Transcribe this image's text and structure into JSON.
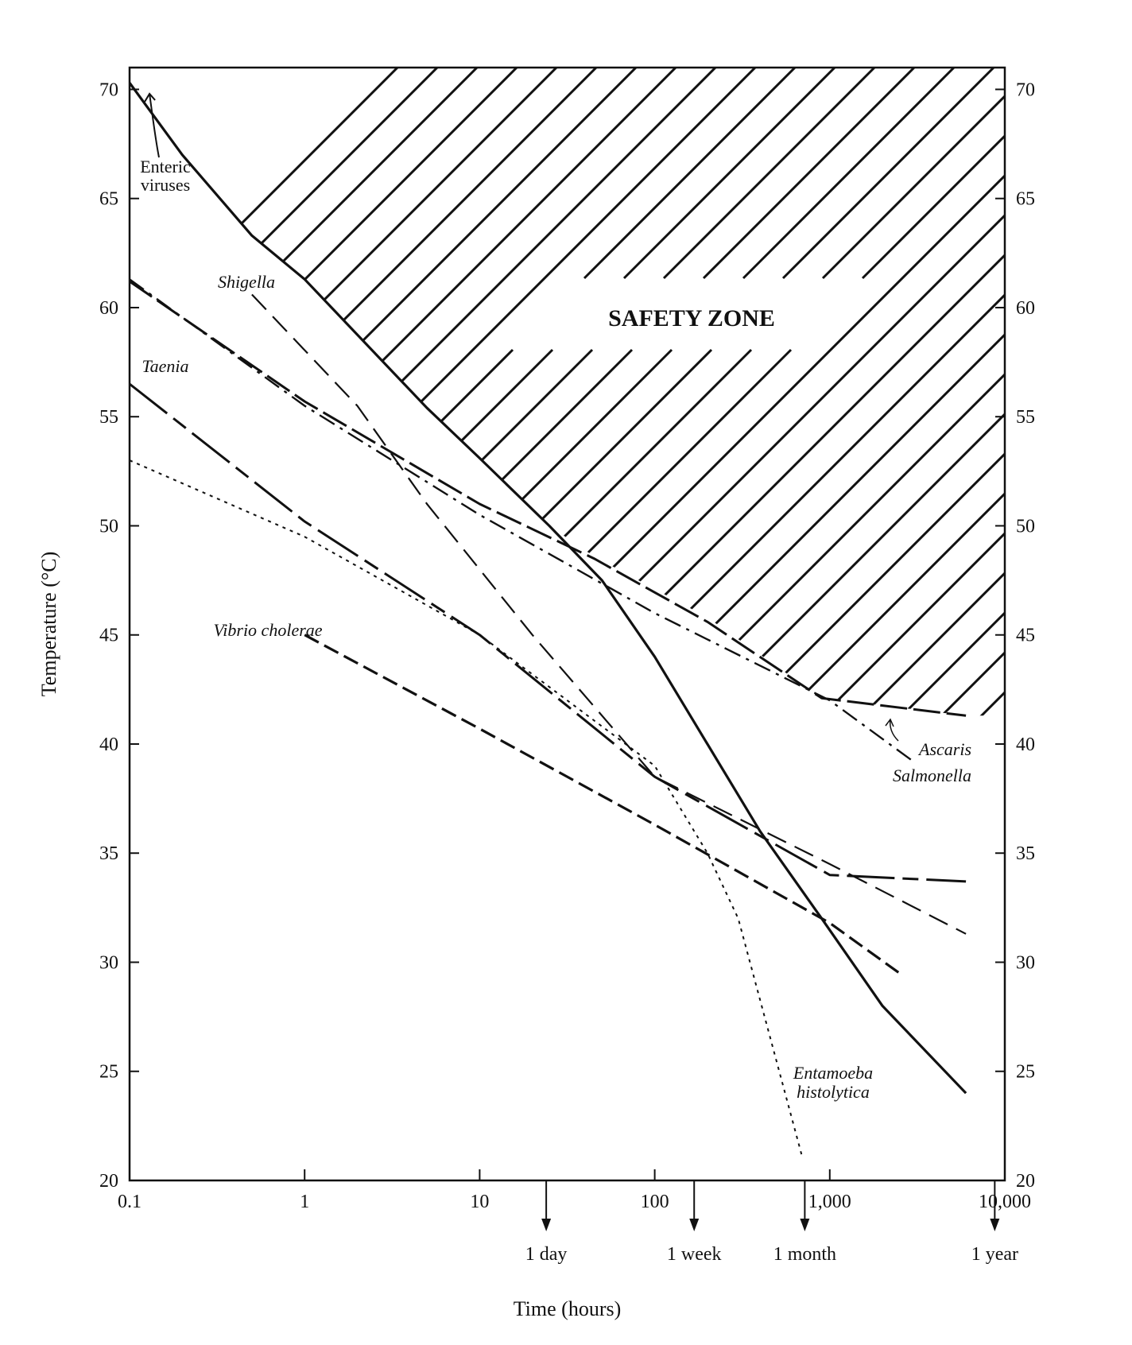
{
  "chart_data": {
    "type": "line",
    "title": "",
    "xlabel": "Time (hours)",
    "ylabel": "Temperature (°C)",
    "x_scale": "log",
    "xlim": [
      0.1,
      10000
    ],
    "ylim": [
      20,
      71
    ],
    "x_ticks": [
      0.1,
      1,
      10,
      100,
      1000,
      10000
    ],
    "x_tick_labels": [
      "0.1",
      "1",
      "10",
      "100",
      "1,000",
      "10,000"
    ],
    "y_ticks": [
      20,
      25,
      30,
      35,
      40,
      45,
      50,
      55,
      60,
      65,
      70
    ],
    "y_tick_labels": [
      "20",
      "25",
      "30",
      "35",
      "40",
      "45",
      "50",
      "55",
      "60",
      "65",
      "70"
    ],
    "time_markers": [
      {
        "label": "1 day",
        "x": 24
      },
      {
        "label": "1 week",
        "x": 168
      },
      {
        "label": "1 month",
        "x": 720
      },
      {
        "label": "1 year",
        "x": 8760
      }
    ],
    "safety_zone": {
      "label": "SAFETY ZONE",
      "boundary": [
        [
          0.1,
          70.3
        ],
        [
          0.2,
          67.0
        ],
        [
          0.5,
          63.3
        ],
        [
          1,
          61.3
        ],
        [
          5,
          55.4
        ],
        [
          10,
          53.1
        ],
        [
          25,
          50.0
        ],
        [
          45,
          48.6
        ],
        [
          200,
          45.8
        ],
        [
          900,
          42.1
        ],
        [
          6000,
          41.3
        ]
      ]
    },
    "series": [
      {
        "name": "Enteric viruses",
        "style": "solid-thick",
        "points": [
          [
            0.1,
            70.3
          ],
          [
            0.2,
            67.0
          ],
          [
            0.5,
            63.3
          ],
          [
            1,
            61.3
          ],
          [
            5,
            55.4
          ],
          [
            10,
            53.1
          ],
          [
            25,
            50.0
          ],
          [
            50,
            47.5
          ],
          [
            100,
            44.0
          ],
          [
            200,
            40.0
          ],
          [
            400,
            36.0
          ],
          [
            900,
            32.0
          ],
          [
            2000,
            28.0
          ],
          [
            6000,
            24.0
          ]
        ]
      },
      {
        "name": "Ascaris",
        "style": "long-dash-heavy",
        "points": [
          [
            0.1,
            61.2
          ],
          [
            1,
            55.7
          ],
          [
            10,
            51.0
          ],
          [
            45,
            48.5
          ],
          [
            200,
            45.6
          ],
          [
            900,
            42.1
          ],
          [
            6000,
            41.3
          ]
        ]
      },
      {
        "name": "Salmonella",
        "style": "dash-dot",
        "points": [
          [
            0.1,
            61.3
          ],
          [
            1,
            55.5
          ],
          [
            10,
            50.5
          ],
          [
            100,
            46.0
          ],
          [
            1000,
            42.0
          ],
          [
            3000,
            39.2
          ]
        ]
      },
      {
        "name": "Shigella",
        "style": "long-dash",
        "points": [
          [
            0.5,
            60.6
          ],
          [
            2,
            55.5
          ],
          [
            5,
            51.0
          ],
          [
            20,
            45.0
          ],
          [
            100,
            38.5
          ],
          [
            1000,
            34.5
          ],
          [
            6000,
            31.3
          ]
        ]
      },
      {
        "name": "Taenia",
        "style": "solid-dash",
        "points": [
          [
            0.1,
            56.5
          ],
          [
            1,
            50.2
          ],
          [
            10,
            45.0
          ],
          [
            100,
            38.5
          ],
          [
            1000,
            34.0
          ],
          [
            6000,
            33.7
          ]
        ]
      },
      {
        "name": "Vibrio cholerae",
        "style": "dashed-heavy",
        "points": [
          [
            1,
            45.0
          ],
          [
            10,
            40.7
          ],
          [
            100,
            36.3
          ],
          [
            1000,
            31.8
          ],
          [
            2500,
            29.5
          ]
        ]
      },
      {
        "name": "Entamoeba histolytica",
        "style": "dotted",
        "points": [
          [
            0.1,
            53.0
          ],
          [
            1,
            49.5
          ],
          [
            10,
            45.0
          ],
          [
            100,
            39.0
          ],
          [
            200,
            35.0
          ],
          [
            300,
            32.0
          ],
          [
            700,
            21.0
          ]
        ]
      }
    ],
    "labels": {
      "enteric_viruses": [
        "Enteric",
        "viruses"
      ],
      "shigella": "Shigella",
      "taenia": "Taenia",
      "vibrio": "Vibrio cholerae",
      "ascaris": "Ascaris",
      "salmonella": "Salmonella",
      "entamoeba": [
        "Entamoeba",
        "histolytica"
      ]
    }
  }
}
